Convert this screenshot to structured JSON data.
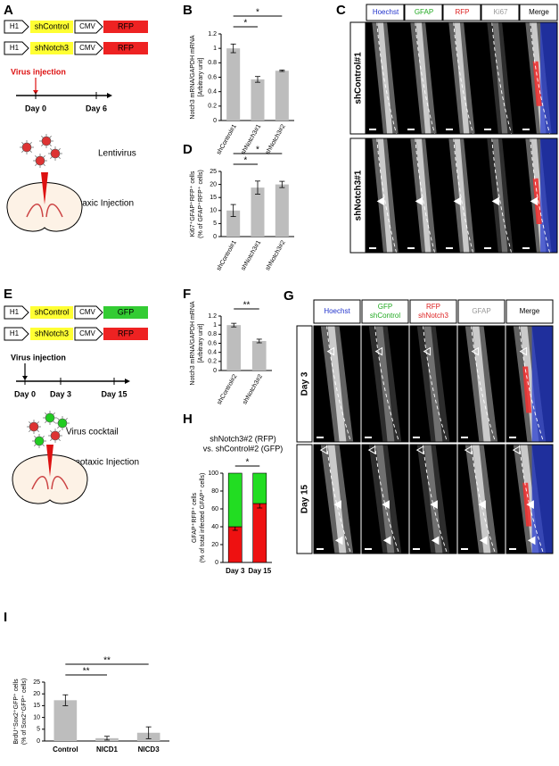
{
  "panel_labels": [
    "A",
    "B",
    "C",
    "D",
    "E",
    "F",
    "G",
    "H",
    "I"
  ],
  "A": {
    "constructs": [
      {
        "parts": [
          "H1",
          "shControl",
          "CMV",
          "RFP"
        ],
        "colors": [
          "#ffff33",
          "#ee2222"
        ]
      },
      {
        "parts": [
          "H1",
          "shNotch3",
          "CMV",
          "RFP"
        ],
        "colors": [
          "#ffff33",
          "#ee2222"
        ]
      }
    ],
    "injection": "Virus injection",
    "days": [
      "Day 0",
      "Day 6"
    ],
    "virus": "Lentivirus",
    "method": "Stereotaxic Injection"
  },
  "C": {
    "columns": [
      "Hoechst",
      "GFAP",
      "RFP",
      "Ki67",
      "Merge"
    ],
    "column_colors": [
      "#2233cc",
      "#22aa22",
      "#dd2222",
      "#999999",
      "#000000"
    ],
    "rows": [
      "shControl#1",
      "shNotch3#1"
    ]
  },
  "E": {
    "constructs": [
      {
        "parts": [
          "H1",
          "shControl",
          "CMV",
          "GFP"
        ],
        "colors": [
          "#ffff33",
          "#33cc33"
        ]
      },
      {
        "parts": [
          "H1",
          "shNotch3",
          "CMV",
          "RFP"
        ],
        "colors": [
          "#ffff33",
          "#ee2222"
        ]
      }
    ],
    "injection": "Virus injection",
    "days": [
      "Day 0",
      "Day 3",
      "Day 15"
    ],
    "virus": "Virus cocktail",
    "method": "Stereotaxic Injection"
  },
  "G": {
    "columns": [
      [
        "Hoechst"
      ],
      [
        "GFP",
        "shControl"
      ],
      [
        "RFP",
        "shNotch3"
      ],
      [
        "GFAP"
      ],
      [
        "Merge"
      ]
    ],
    "column_colors": [
      "#2233cc",
      "#22aa22",
      "#dd2222",
      "#999999",
      "#000000"
    ],
    "rows": [
      "Day 3",
      "Day 15"
    ]
  },
  "chart_data": [
    {
      "type": "bar",
      "ylabel": [
        "Notch3 mRNA/GAPDH mRNA",
        "[Arbitrary unit]"
      ],
      "categories": [
        "shControl#1",
        "shNotch3#1",
        "shNotch3#2"
      ],
      "values": [
        1.0,
        0.57,
        0.69
      ],
      "errors": [
        0.06,
        0.04,
        0.01
      ],
      "color": "#bdbdbd",
      "ylim": [
        0,
        1.2
      ],
      "yticks": [
        0,
        0.2,
        0.4,
        0.6,
        0.8,
        1,
        1.2
      ],
      "significance": [
        {
          "label": "*",
          "between": [
            "shControl#1",
            "shNotch3#1"
          ]
        },
        {
          "label": "*",
          "between": [
            "shControl#1",
            "shNotch3#2"
          ]
        }
      ]
    },
    {
      "type": "bar",
      "ylabel": [
        "Ki67⁺GFAP⁺RFP⁺ cells",
        "(% of GFAP⁺RFP⁺ cells)"
      ],
      "categories": [
        "shControl#1",
        "shNotch3#1",
        "shNotch3#2"
      ],
      "values": [
        10,
        18.8,
        20
      ],
      "errors": [
        2.3,
        2.5,
        1.2
      ],
      "color": "#bdbdbd",
      "ylim": [
        0,
        25
      ],
      "yticks": [
        0,
        5,
        10,
        15,
        20,
        25
      ],
      "significance": [
        {
          "label": "*",
          "between": [
            "shControl#1",
            "shNotch3#1"
          ]
        },
        {
          "label": "*",
          "between": [
            "shControl#1",
            "shNotch3#2"
          ]
        }
      ]
    },
    {
      "type": "bar",
      "ylabel": [
        "Notch3 mRNA/GAPDH mRNA",
        "[Arbitrary unit]"
      ],
      "categories": [
        "shControl#2",
        "shNotch3#2"
      ],
      "values": [
        1.0,
        0.65
      ],
      "errors": [
        0.04,
        0.04
      ],
      "color": "#bdbdbd",
      "ylim": [
        0,
        1.2
      ],
      "yticks": [
        0,
        0.2,
        0.4,
        0.6,
        0.8,
        1,
        1.2
      ],
      "significance": [
        {
          "label": "**",
          "between": [
            "shControl#2",
            "shNotch3#2"
          ]
        }
      ]
    },
    {
      "type": "stacked_bar",
      "title": [
        "shNotch3#2 (RFP)",
        "vs. shControl#2 (GFP)"
      ],
      "ylabel": [
        "GFAP⁺RFP⁺ cells",
        "(% of total infected GFAP⁺ cells)"
      ],
      "categories": [
        "Day 3",
        "Day 15"
      ],
      "series": [
        {
          "color": "#ee1111",
          "values": [
            40,
            66
          ],
          "errors": [
            4,
            5
          ]
        },
        {
          "color": "#22dd22",
          "values": [
            60,
            34
          ]
        }
      ],
      "ylim": [
        0,
        100
      ],
      "yticks": [
        0,
        20,
        40,
        60,
        80,
        100
      ],
      "significance": [
        {
          "label": "*",
          "between": [
            "Day 3",
            "Day 15"
          ]
        }
      ]
    },
    {
      "type": "bar",
      "ylabel": [
        "BrdU⁺Sox2⁺GFP⁺ cells",
        "(% of Sox2⁺GFP⁺ cells)"
      ],
      "categories": [
        "Control",
        "NICD1",
        "NICD3"
      ],
      "values": [
        17.3,
        1.2,
        3.5
      ],
      "errors": [
        2.3,
        0.8,
        2.5
      ],
      "color": "#bdbdbd",
      "ylim": [
        0,
        25
      ],
      "yticks": [
        0,
        5,
        10,
        15,
        20,
        25
      ],
      "significance": [
        {
          "label": "**",
          "between": [
            "Control",
            "NICD1"
          ]
        },
        {
          "label": "**",
          "between": [
            "Control",
            "NICD3"
          ]
        }
      ]
    }
  ]
}
